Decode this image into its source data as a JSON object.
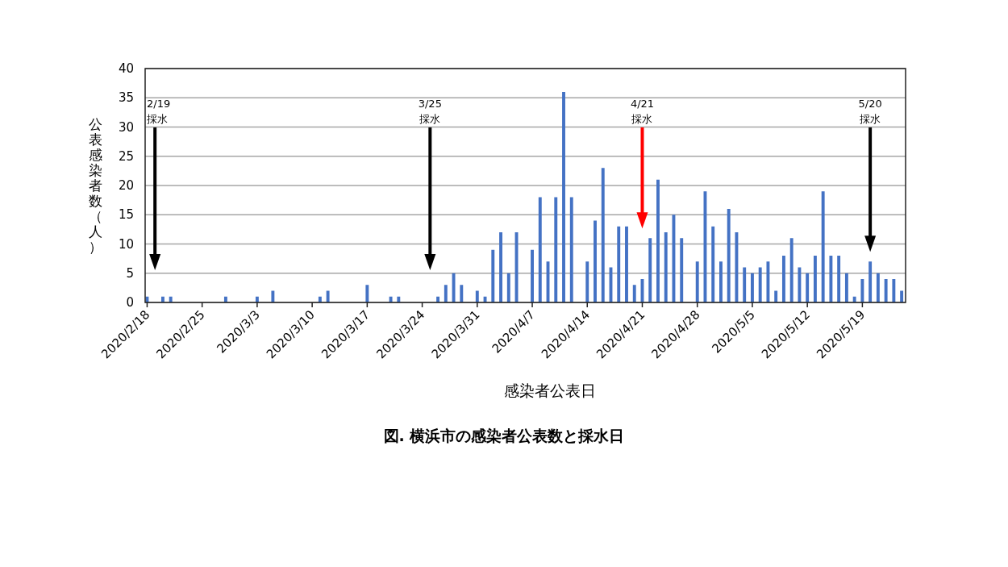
{
  "chart_data": {
    "type": "bar",
    "title": "図. 横浜市の感染者公表数と採水日",
    "xlabel": "感染者公表日",
    "ylabel": "公表感染者数（人）",
    "color": "#4472c4",
    "grid": "y",
    "x": [
      "2020-02-18",
      "2020-02-20",
      "2020-02-21",
      "2020-02-28",
      "2020-03-03",
      "2020-03-05",
      "2020-03-11",
      "2020-03-12",
      "2020-03-17",
      "2020-03-20",
      "2020-03-21",
      "2020-03-26",
      "2020-03-27",
      "2020-03-28",
      "2020-03-29",
      "2020-03-31",
      "2020-04-01",
      "2020-04-02",
      "2020-04-03",
      "2020-04-04",
      "2020-04-05",
      "2020-04-07",
      "2020-04-08",
      "2020-04-09",
      "2020-04-10",
      "2020-04-11",
      "2020-04-12",
      "2020-04-14",
      "2020-04-15",
      "2020-04-16",
      "2020-04-17",
      "2020-04-18",
      "2020-04-19",
      "2020-04-20",
      "2020-04-21",
      "2020-04-22",
      "2020-04-23",
      "2020-04-24",
      "2020-04-25",
      "2020-04-26",
      "2020-04-28",
      "2020-04-29",
      "2020-04-30",
      "2020-05-01",
      "2020-05-02",
      "2020-05-03",
      "2020-05-04",
      "2020-05-05",
      "2020-05-06",
      "2020-05-07",
      "2020-05-08",
      "2020-05-09",
      "2020-05-10",
      "2020-05-11",
      "2020-05-12",
      "2020-05-13",
      "2020-05-14",
      "2020-05-15",
      "2020-05-16",
      "2020-05-17",
      "2020-05-18",
      "2020-05-19",
      "2020-05-20",
      "2020-05-21",
      "2020-05-22",
      "2020-05-23",
      "2020-05-24"
    ],
    "values": [
      1,
      1,
      1,
      1,
      1,
      2,
      1,
      2,
      3,
      1,
      1,
      1,
      3,
      5,
      3,
      2,
      1,
      9,
      12,
      5,
      12,
      9,
      18,
      7,
      18,
      36,
      18,
      7,
      14,
      23,
      6,
      13,
      13,
      3,
      4,
      11,
      21,
      12,
      15,
      11,
      7,
      19,
      13,
      7,
      16,
      12,
      6,
      5,
      6,
      7,
      2,
      8,
      11,
      6,
      5,
      8,
      19,
      8,
      8,
      5,
      1,
      4,
      7,
      5,
      4,
      4,
      2
    ],
    "xlim": [
      "2020-02-17T18:00",
      "2020-05-24T12:00"
    ],
    "xticks": [
      {
        "value": "2020-02-18",
        "label": "2020/2/18"
      },
      {
        "value": "2020-02-25",
        "label": "2020/2/25"
      },
      {
        "value": "2020-03-03",
        "label": "2020/3/3"
      },
      {
        "value": "2020-03-10",
        "label": "2020/3/10"
      },
      {
        "value": "2020-03-17",
        "label": "2020/3/17"
      },
      {
        "value": "2020-03-24",
        "label": "2020/3/24"
      },
      {
        "value": "2020-03-31",
        "label": "2020/3/31"
      },
      {
        "value": "2020-04-07",
        "label": "2020/4/7"
      },
      {
        "value": "2020-04-14",
        "label": "2020/4/14"
      },
      {
        "value": "2020-04-21",
        "label": "2020/4/21"
      },
      {
        "value": "2020-04-28",
        "label": "2020/4/28"
      },
      {
        "value": "2020-05-05",
        "label": "2020/5/5"
      },
      {
        "value": "2020-05-12",
        "label": "2020/5/12"
      },
      {
        "value": "2020-05-19",
        "label": "2020/5/19"
      }
    ],
    "ylim": [
      0,
      40
    ],
    "yticks": [
      0,
      5,
      10,
      15,
      20,
      25,
      30,
      35,
      40
    ],
    "ref_lines": [
      {
        "axis": "x",
        "value": "2020-02-19",
        "label": "2/19\n採水",
        "color": "#000000"
      },
      {
        "axis": "x",
        "value": "2020-03-25",
        "label": "3/25\n採水",
        "color": "#000000"
      },
      {
        "axis": "x",
        "value": "2020-04-21",
        "label": "4/21\n採水",
        "color": "#ff0000"
      },
      {
        "axis": "x",
        "value": "2020-05-20",
        "label": "5/20\n採水",
        "color": "#000000"
      }
    ]
  }
}
